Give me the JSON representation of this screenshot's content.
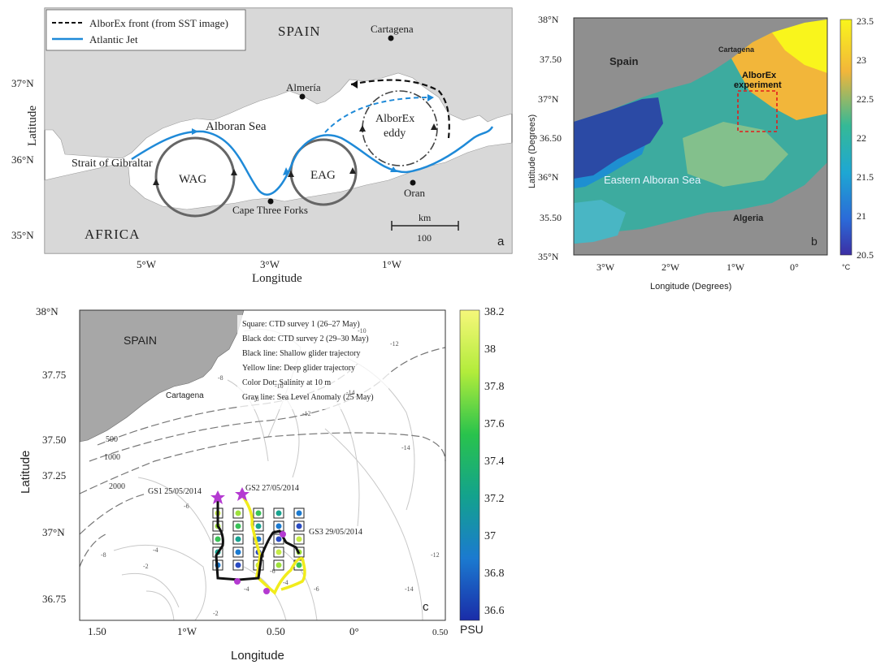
{
  "panel_a": {
    "legend": {
      "front": "AlborEx front (from SST image)",
      "jet": "Atlantic Jet"
    },
    "places": {
      "spain": "SPAIN",
      "africa": "AFRICA",
      "cartagena": "Cartagena",
      "almeria": "Almería",
      "alboran_sea": "Alboran Sea",
      "strait": "Strait of Gibraltar",
      "cape": "Cape Three Forks",
      "oran": "Oran",
      "wag": "WAG",
      "eag": "EAG",
      "eddy_line1": "AlborEx",
      "eddy_line2": "eddy"
    },
    "scale": {
      "unit": "km",
      "value": "100"
    },
    "lat_ticks": [
      "37°N",
      "36°N",
      "35°N"
    ],
    "lon_ticks": [
      "5°W",
      "3°W",
      "1°W"
    ],
    "xlabel": "Longitude",
    "ylabel": "Latitude",
    "letter": "a"
  },
  "panel_b": {
    "places": {
      "spain": "Spain",
      "cartagena": "Cartagena",
      "experiment_line1": "AlborEx",
      "experiment_line2": "experiment",
      "eastern": "Eastern Alboran Sea",
      "algeria": "Algeria"
    },
    "lat_ticks": [
      "38°N",
      "37.50",
      "37°N",
      "36.50",
      "36°N",
      "35.50",
      "35°N"
    ],
    "lon_ticks": [
      "3°W",
      "2°W",
      "1°W",
      "0°"
    ],
    "xlabel": "Longitude (Degrees)",
    "ylabel": "Latitude (Degrees)",
    "colorbar": {
      "ticks": [
        "23.5",
        "23",
        "22.5",
        "22",
        "21.5",
        "21",
        "20.5"
      ],
      "unit": "°C"
    },
    "letter": "b"
  },
  "panel_c": {
    "legend_lines": [
      "Square: CTD survey 1 (26–27 May)",
      "Black dot: CTD survey 2 (29–30 May)",
      "Black line: Shallow glider trajectory",
      "Yellow line: Deep glider trajectory",
      "Color Dot: Salinity at 10 m",
      "Gray line: Sea Level Anomaly (25 May)"
    ],
    "places": {
      "spain": "SPAIN",
      "cartagena": "Cartagena"
    },
    "glider_labels": {
      "gs1": "GS1 25/05/2014",
      "gs2": "GS2 27/05/2014",
      "gs3": "GS3 29/05/2014"
    },
    "depth_labels": [
      "500",
      "1000",
      "2000"
    ],
    "sla_labels": [
      "-12",
      "-10",
      "-14",
      "-14",
      "-12",
      "-8",
      "-8",
      "-6",
      "-4",
      "-2",
      "-8",
      "-6",
      "-4",
      "-2",
      "-4",
      "-6",
      "-6",
      "-12",
      "-14",
      "-10"
    ],
    "lat_ticks": [
      "38°N",
      "37.75",
      "37.50",
      "37.25",
      "37°N",
      "36.75"
    ],
    "lon_ticks": [
      "1.50",
      "1°W",
      "0.50",
      "0°",
      "0.50"
    ],
    "xlabel": "Longitude",
    "ylabel": "Latitude",
    "colorbar": {
      "ticks": [
        "38.2",
        "38",
        "37.8",
        "37.6",
        "37.4",
        "37.2",
        "37",
        "36.8",
        "36.6"
      ],
      "unit": "PSU"
    },
    "letter": "c"
  },
  "colors": {
    "jet": "#1f8ad8",
    "land": "#d9d9d9",
    "glider_deep": "#f1ec1c",
    "marker": "#b43ad1"
  }
}
